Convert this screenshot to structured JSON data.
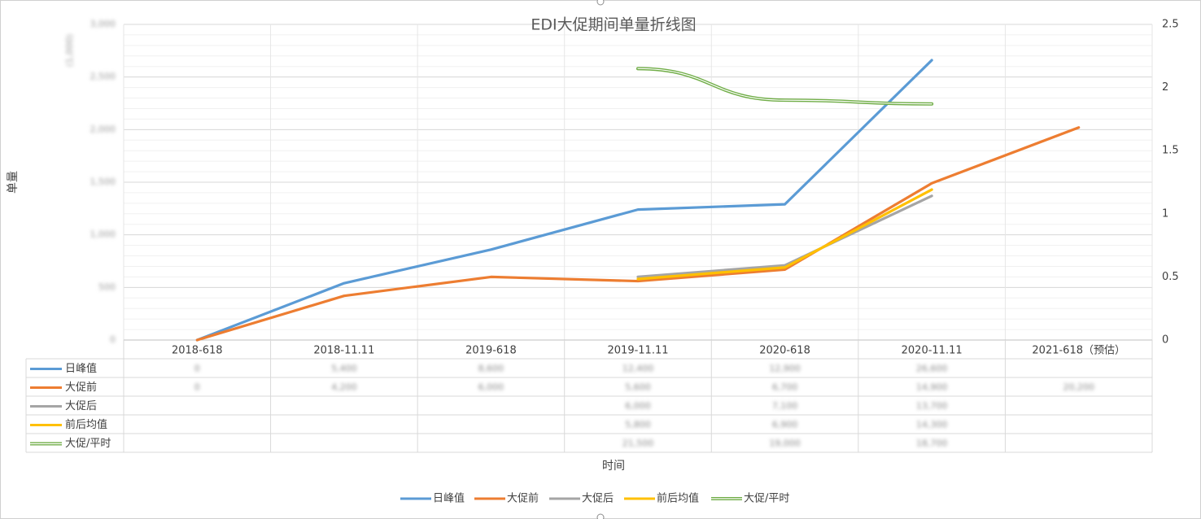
{
  "chart_data": {
    "type": "line",
    "title": "EDI大促期间单量折线图",
    "xlabel": "时间",
    "ylabel": "单量",
    "left_tick_labels": [
      "0",
      "500",
      "1,000",
      "1,500",
      "2,000",
      "2,500",
      "3,000"
    ],
    "right_ylim": [
      0,
      2.5
    ],
    "right_tick_labels": [
      "0",
      "0.5",
      "1",
      "1.5",
      "2",
      "2.5"
    ],
    "categories": [
      "2018-618",
      "2018-11.11",
      "2019-618",
      "2019-11.11",
      "2020-618",
      "2020-11.11",
      "2021-618（预估）"
    ],
    "grid": true,
    "legend_position": "bottom",
    "series": [
      {
        "name": "日峰值",
        "color": "#5B9BD5",
        "axis": "left",
        "values": [
          0.0,
          0.54,
          0.86,
          1.24,
          1.29,
          2.66,
          null
        ],
        "style": "solid"
      },
      {
        "name": "大促前",
        "color": "#ED7D31",
        "axis": "left",
        "values": [
          0.0,
          0.42,
          0.6,
          0.56,
          0.67,
          1.49,
          2.02
        ],
        "style": "solid"
      },
      {
        "name": "大促后",
        "color": "#A5A5A5",
        "axis": "left",
        "values": [
          null,
          null,
          null,
          0.6,
          0.71,
          1.37,
          null
        ],
        "style": "solid"
      },
      {
        "name": "前后均值",
        "color": "#FFC000",
        "axis": "left",
        "values": [
          null,
          null,
          null,
          0.58,
          0.69,
          1.43,
          null
        ],
        "style": "solid"
      },
      {
        "name": "大促/平时",
        "color": "#70AD47",
        "axis": "right",
        "values": [
          null,
          null,
          null,
          2.15,
          1.9,
          1.87,
          null
        ],
        "style": "double",
        "smooth": true
      }
    ],
    "table_values_obscured": true
  }
}
